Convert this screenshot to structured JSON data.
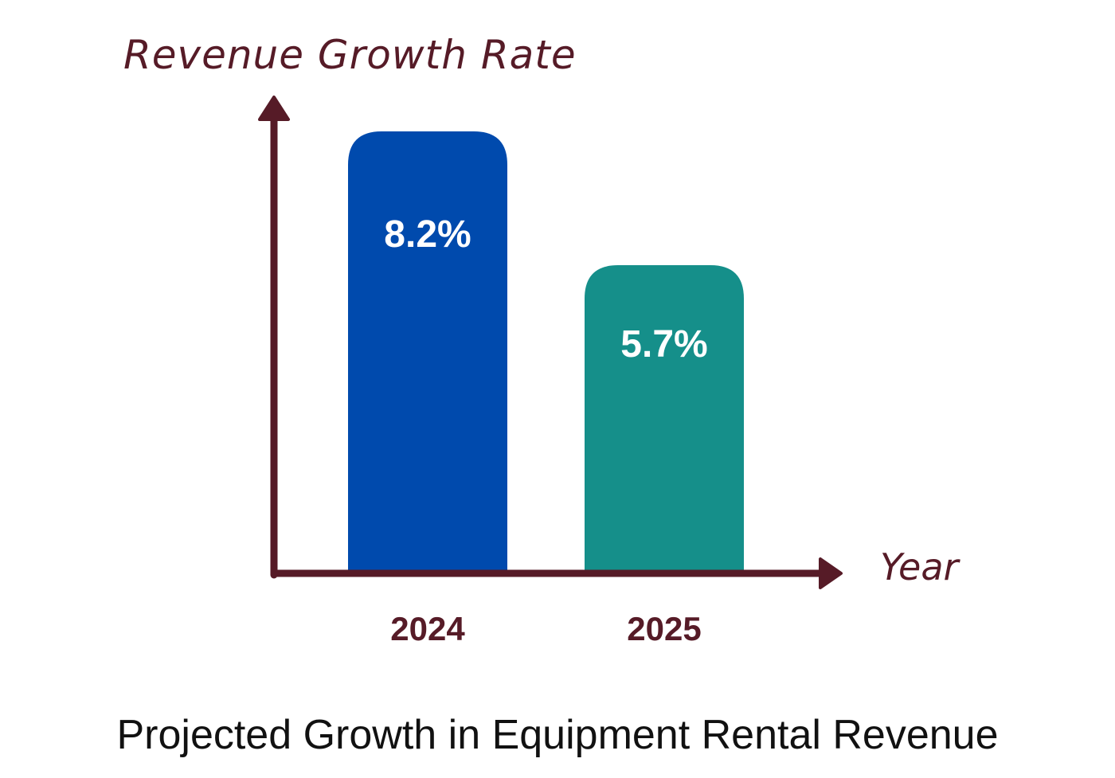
{
  "chart_data": {
    "type": "bar",
    "title": "Projected Growth in Equipment Rental Revenue",
    "xlabel": "Year",
    "ylabel": "Revenue Growth Rate",
    "categories": [
      "2024",
      "2025"
    ],
    "values": [
      8.2,
      5.7
    ],
    "value_labels": [
      "8.2%",
      "5.7%"
    ],
    "unit": "%",
    "ylim": [
      0,
      10
    ],
    "grid": false,
    "legend": "none",
    "colors": [
      "#004AAD",
      "#158F8A"
    ],
    "axis_color": "#561B27"
  }
}
